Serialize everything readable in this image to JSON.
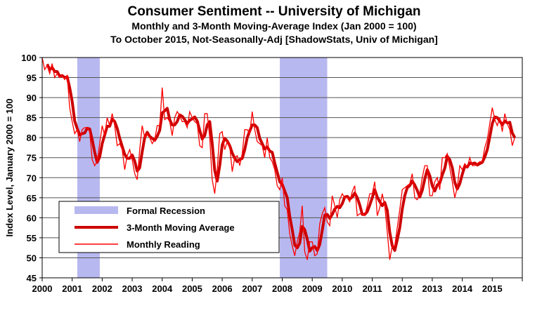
{
  "chart_data": {
    "type": "line",
    "title": "Consumer Sentiment -- University of Michigan",
    "subtitle1": "Monthly and 3-Month Moving-Average Index (Jan 2000 = 100)",
    "subtitle2": "To October 2015, Not-Seasonally-Adj [ShadowStats, Univ of Michigan]",
    "ylabel": "Index Level, January 2000 = 100",
    "xlabel": "",
    "ylim": [
      45,
      100
    ],
    "xlim": [
      2000,
      2016
    ],
    "yticks": [
      "45",
      "50",
      "55",
      "60",
      "65",
      "70",
      "75",
      "80",
      "85",
      "90",
      "95",
      "100"
    ],
    "xticks": [
      "2000",
      "2001",
      "2002",
      "2003",
      "2004",
      "2005",
      "2006",
      "2007",
      "2008",
      "2009",
      "2010",
      "2011",
      "2012",
      "2013",
      "2014",
      "2015"
    ],
    "grid": true,
    "legend": {
      "placement": "lower-left",
      "items": [
        "Formal Recession",
        "3-Month Moving Average",
        "Monthly Reading"
      ]
    },
    "recessions": [
      [
        2001.17,
        2001.92
      ],
      [
        2007.92,
        2009.5
      ]
    ],
    "start": "2000-01",
    "colors": {
      "monthly": "#ff0000",
      "ma": "#cc0000",
      "recession": "#b8b8f0"
    },
    "series": [
      {
        "name": "Monthly Reading",
        "values": [
          100,
          97,
          98,
          96,
          98.5,
          95,
          96,
          95,
          95.5,
          94.5,
          95.5,
          87.5,
          84,
          81,
          82,
          79,
          82,
          82.5,
          82.5,
          81.5,
          74.5,
          73,
          74,
          78.5,
          83,
          80.5,
          85,
          83,
          86,
          83,
          78,
          78.5,
          77,
          72,
          75.5,
          77,
          74.5,
          71,
          69.5,
          77,
          83,
          80,
          81,
          80,
          78.5,
          79.5,
          83,
          83,
          92.5,
          84.5,
          85,
          84,
          80.5,
          85,
          86.5,
          85.5,
          84,
          84,
          82.5,
          86.5,
          85,
          84,
          83.5,
          78,
          77.5,
          86,
          86,
          80,
          69.5,
          66,
          72,
          81,
          81.5,
          77,
          79,
          78,
          71.5,
          75,
          75.5,
          73,
          76,
          82,
          82,
          81,
          86.5,
          82,
          79,
          78.5,
          78,
          75,
          80,
          75,
          74,
          72,
          68,
          67,
          70,
          63,
          62,
          56,
          53,
          50.5,
          54,
          56.5,
          63,
          51.5,
          49.5,
          54,
          54,
          50.5,
          51,
          58.5,
          61,
          62.5,
          59,
          58,
          65.5,
          63,
          60,
          64.5,
          66,
          65,
          65,
          64,
          66.5,
          68,
          60.5,
          61,
          61,
          60.5,
          63,
          66,
          66,
          69,
          60.5,
          62.5,
          66,
          63,
          56.5,
          49.5,
          53,
          53,
          57.5,
          62,
          67,
          67.5,
          68,
          68.5,
          71,
          65,
          64.5,
          66,
          70,
          73,
          73,
          65.5,
          65.5,
          69,
          70,
          67,
          75,
          75,
          76,
          72.5,
          69,
          65,
          67.5,
          73,
          72,
          73.5,
          72.5,
          75,
          73,
          73,
          73.5,
          74,
          74,
          77.5,
          79.5,
          83.5,
          87.5,
          84.5,
          83,
          85,
          81.5,
          86,
          83.5,
          82,
          78,
          80
        ]
      },
      {
        "name": "3-Month Moving Average",
        "values": "computed: trailing 3-month mean of Monthly Reading"
      }
    ]
  }
}
